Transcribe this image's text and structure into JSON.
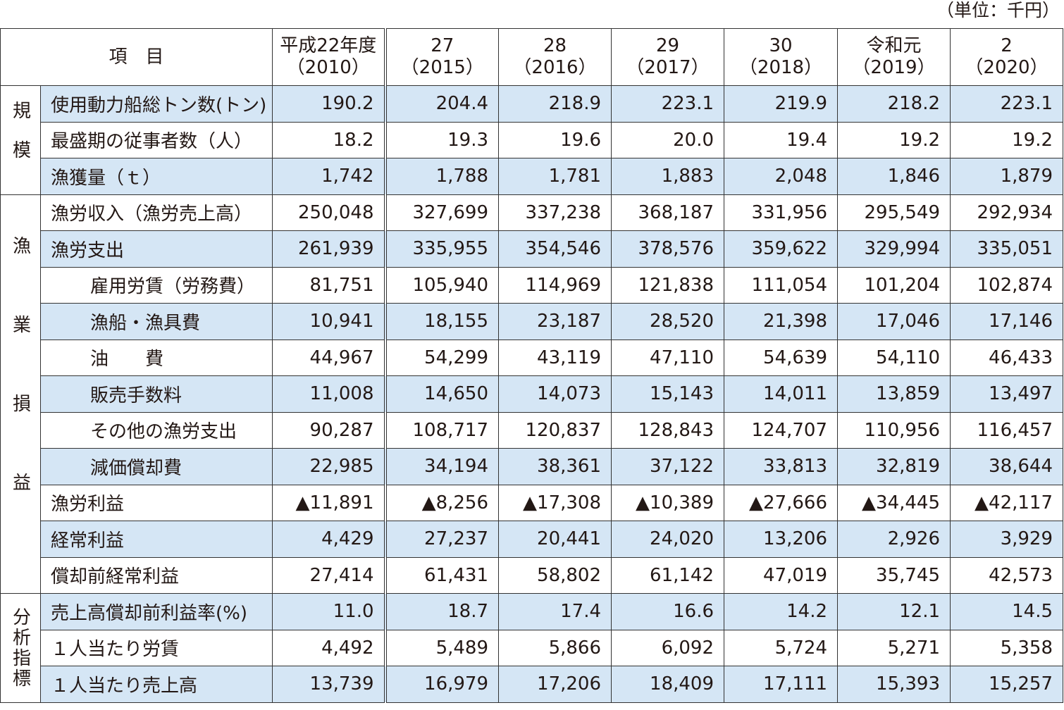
{
  "unit_note": "（単位：千円）",
  "table": {
    "header": {
      "item": "項　目",
      "columns": [
        {
          "era": "平成22年度",
          "year": "（2010）"
        },
        {
          "era": "27",
          "year": "（2015）"
        },
        {
          "era": "28",
          "year": "（2016）"
        },
        {
          "era": "29",
          "year": "（2017）"
        },
        {
          "era": "30",
          "year": "（2018）"
        },
        {
          "era": "令和元",
          "year": "（2019）"
        },
        {
          "era": "2",
          "year": "（2020）"
        }
      ]
    },
    "groups": [
      {
        "label": "規模",
        "rows": [
          {
            "item": "使用動力船総トン数(トン)",
            "indent": false,
            "values": [
              "190.2",
              "204.4",
              "218.9",
              "223.1",
              "219.9",
              "218.2",
              "223.1"
            ]
          },
          {
            "item": "最盛期の従事者数（人）",
            "indent": false,
            "values": [
              "18.2",
              "19.3",
              "19.6",
              "20.0",
              "19.4",
              "19.2",
              "19.2"
            ]
          },
          {
            "item": "漁獲量（ｔ）",
            "indent": false,
            "values": [
              "1,742",
              "1,788",
              "1,781",
              "1,883",
              "2,048",
              "1,846",
              "1,879"
            ]
          }
        ]
      },
      {
        "label": "漁業損益",
        "rows": [
          {
            "item": "漁労収入（漁労売上高）",
            "indent": false,
            "values": [
              "250,048",
              "327,699",
              "337,238",
              "368,187",
              "331,956",
              "295,549",
              "292,934"
            ]
          },
          {
            "item": "漁労支出",
            "indent": false,
            "values": [
              "261,939",
              "335,955",
              "354,546",
              "378,576",
              "359,622",
              "329,994",
              "335,051"
            ]
          },
          {
            "item": "雇用労賃（労務費）",
            "indent": true,
            "values": [
              "81,751",
              "105,940",
              "114,969",
              "121,838",
              "111,054",
              "101,204",
              "102,874"
            ]
          },
          {
            "item": "漁船・漁具費",
            "indent": true,
            "values": [
              "10,941",
              "18,155",
              "23,187",
              "28,520",
              "21,398",
              "17,046",
              "17,146"
            ]
          },
          {
            "item": "油　　費",
            "indent": true,
            "values": [
              "44,967",
              "54,299",
              "43,119",
              "47,110",
              "54,639",
              "54,110",
              "46,433"
            ]
          },
          {
            "item": "販売手数料",
            "indent": true,
            "values": [
              "11,008",
              "14,650",
              "14,073",
              "15,143",
              "14,011",
              "13,859",
              "13,497"
            ]
          },
          {
            "item": "その他の漁労支出",
            "indent": true,
            "values": [
              "90,287",
              "108,717",
              "120,837",
              "128,843",
              "124,707",
              "110,956",
              "116,457"
            ]
          },
          {
            "item": "減価償却費",
            "indent": true,
            "values": [
              "22,985",
              "34,194",
              "38,361",
              "37,122",
              "33,813",
              "32,819",
              "38,644"
            ]
          },
          {
            "item": "漁労利益",
            "indent": false,
            "values": [
              "▲11,891",
              "▲8,256",
              "▲17,308",
              "▲10,389",
              "▲27,666",
              "▲34,445",
              "▲42,117"
            ]
          },
          {
            "item": "経常利益",
            "indent": false,
            "values": [
              "4,429",
              "27,237",
              "20,441",
              "24,020",
              "13,206",
              "2,926",
              "3,929"
            ]
          },
          {
            "item": "償却前経常利益",
            "indent": false,
            "values": [
              "27,414",
              "61,431",
              "58,802",
              "61,142",
              "47,019",
              "35,745",
              "42,573"
            ]
          }
        ]
      },
      {
        "label": "分析指標",
        "rows": [
          {
            "item": "売上高償却前利益率(%)",
            "indent": false,
            "values": [
              "11.0",
              "18.7",
              "17.4",
              "16.6",
              "14.2",
              "12.1",
              "14.5"
            ]
          },
          {
            "item": "１人当たり労賃",
            "indent": false,
            "values": [
              "4,492",
              "5,489",
              "5,866",
              "6,092",
              "5,724",
              "5,271",
              "5,358"
            ]
          },
          {
            "item": "１人当たり売上高",
            "indent": false,
            "values": [
              "13,739",
              "16,979",
              "17,206",
              "18,409",
              "17,111",
              "15,393",
              "15,257"
            ]
          }
        ]
      }
    ]
  }
}
